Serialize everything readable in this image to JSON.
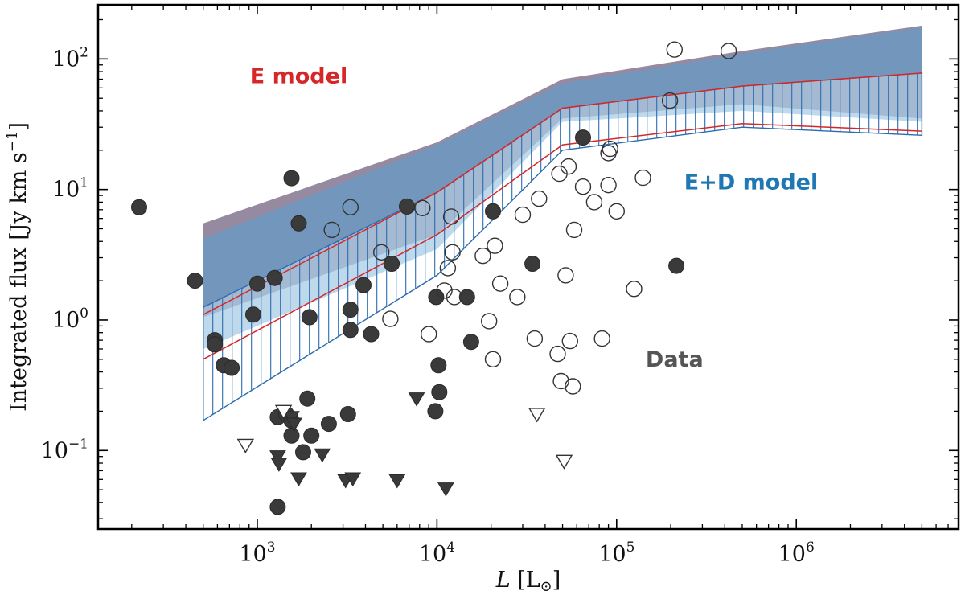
{
  "chart_data": {
    "type": "scatter",
    "xscale": "log",
    "yscale": "log",
    "xlim": [
      130,
      8000000
    ],
    "ylim": [
      0.025,
      260
    ],
    "xlabel": {
      "symbol": "L",
      "unit": " [L",
      "unit_sub": "⊙",
      "unit_close": "]"
    },
    "ylabel": {
      "text": "Integrated flux [Jy km s",
      "sup": "−1",
      "close": "]"
    },
    "x_ticks": [
      {
        "value": 1000,
        "label_base": "10",
        "label_exp": "3"
      },
      {
        "value": 10000,
        "label_base": "10",
        "label_exp": "4"
      },
      {
        "value": 100000,
        "label_base": "10",
        "label_exp": "5"
      },
      {
        "value": 1000000,
        "label_base": "10",
        "label_exp": "6"
      }
    ],
    "y_ticks": [
      {
        "value": 0.1,
        "label_base": "10",
        "label_exp": "−1"
      },
      {
        "value": 1,
        "label_base": "10",
        "label_exp": "0"
      },
      {
        "value": 10,
        "label_base": "10",
        "label_exp": "1"
      },
      {
        "value": 100,
        "label_base": "10",
        "label_exp": "2"
      }
    ],
    "annotations": [
      {
        "text": "E model",
        "x": 1700,
        "y": 65,
        "color": "#d62728"
      },
      {
        "text": "E+D model",
        "x": 560000,
        "y": 10,
        "color": "#1f77b4"
      },
      {
        "text": "Data",
        "x": 210000,
        "y": 0.44,
        "color": "#555555"
      }
    ],
    "series": [
      {
        "name": "E model band",
        "kind": "band",
        "color": "#5e4b6e",
        "opacity": 0.65,
        "x": [
          500,
          10000,
          50000,
          500000,
          5000000
        ],
        "upper": [
          5.5,
          23,
          70,
          115,
          180
        ],
        "lower": [
          1.05,
          4.5,
          35,
          45,
          35
        ]
      },
      {
        "name": "E+D model band",
        "kind": "band",
        "color": "#5b9fcf",
        "opacity": 0.6,
        "x": [
          500,
          10000,
          50000,
          500000,
          5000000
        ],
        "upper": [
          4.2,
          22,
          65,
          110,
          175
        ],
        "lower": [
          0.6,
          3.5,
          33,
          40,
          33
        ]
      },
      {
        "name": "Hatched model region",
        "kind": "hatched",
        "color": "#2b6cb0",
        "x": [
          500,
          10000,
          50000,
          500000,
          5000000
        ],
        "upper": [
          1.25,
          9.5,
          42,
          62,
          78
        ],
        "lower": [
          0.17,
          2.2,
          20,
          30,
          26
        ]
      },
      {
        "name": "Model median",
        "kind": "line",
        "color": "#d62728",
        "x": [
          500,
          10000,
          50000,
          500000,
          5000000
        ],
        "y": [
          0.5,
          4.5,
          22,
          32,
          28
        ]
      },
      {
        "name": "Model upper line",
        "kind": "line",
        "color": "#d62728",
        "x": [
          500,
          10000,
          50000,
          500000,
          5000000
        ],
        "y": [
          1.1,
          9.5,
          42,
          62,
          78
        ]
      },
      {
        "name": "Detections (filled circles)",
        "kind": "marker",
        "shape": "circle",
        "filled": true,
        "color": "#3a3a3a",
        "points": [
          [
            220,
            7.3
          ],
          [
            450,
            2.0
          ],
          [
            580,
            0.7
          ],
          [
            580,
            0.65
          ],
          [
            650,
            0.45
          ],
          [
            720,
            0.43
          ],
          [
            950,
            1.1
          ],
          [
            1000,
            1.9
          ],
          [
            1250,
            2.1
          ],
          [
            1300,
            0.18
          ],
          [
            1300,
            0.037
          ],
          [
            1450,
            0.19
          ],
          [
            1550,
            0.17
          ],
          [
            1550,
            0.13
          ],
          [
            1550,
            12.2
          ],
          [
            1700,
            5.5
          ],
          [
            1800,
            0.097
          ],
          [
            1900,
            0.25
          ],
          [
            1950,
            1.05
          ],
          [
            2000,
            0.13
          ],
          [
            2500,
            0.16
          ],
          [
            3200,
            0.19
          ],
          [
            3300,
            1.2
          ],
          [
            3300,
            0.84
          ],
          [
            3900,
            1.85
          ],
          [
            4300,
            0.78
          ],
          [
            5600,
            2.7
          ],
          [
            6800,
            7.4
          ],
          [
            9800,
            0.2
          ],
          [
            9900,
            1.5
          ],
          [
            10200,
            0.45
          ],
          [
            10300,
            0.28
          ],
          [
            14700,
            1.5
          ],
          [
            15500,
            0.68
          ],
          [
            20500,
            6.8
          ],
          [
            34000,
            2.7
          ],
          [
            65000,
            25
          ],
          [
            215000,
            2.6
          ]
        ]
      },
      {
        "name": "Detections (open circles)",
        "kind": "marker",
        "shape": "circle",
        "filled": false,
        "color": "#333333",
        "points": [
          [
            2600,
            4.9
          ],
          [
            3300,
            7.3
          ],
          [
            4900,
            3.3
          ],
          [
            5500,
            1.02
          ],
          [
            8300,
            7.2
          ],
          [
            9000,
            0.78
          ],
          [
            11000,
            1.68
          ],
          [
            11500,
            2.5
          ],
          [
            12000,
            6.2
          ],
          [
            12200,
            3.3
          ],
          [
            12500,
            1.5
          ],
          [
            18000,
            3.1
          ],
          [
            19500,
            0.98
          ],
          [
            20500,
            0.5
          ],
          [
            21000,
            3.7
          ],
          [
            22500,
            1.9
          ],
          [
            28000,
            1.5
          ],
          [
            30000,
            6.4
          ],
          [
            35000,
            0.72
          ],
          [
            37000,
            8.5
          ],
          [
            47000,
            0.55
          ],
          [
            48000,
            13.2
          ],
          [
            49000,
            0.34
          ],
          [
            52000,
            2.2
          ],
          [
            54000,
            15
          ],
          [
            55000,
            0.69
          ],
          [
            57000,
            0.31
          ],
          [
            58000,
            4.9
          ],
          [
            65000,
            10.5
          ],
          [
            75000,
            8.0
          ],
          [
            83000,
            0.72
          ],
          [
            90000,
            10.8
          ],
          [
            90000,
            19
          ],
          [
            92000,
            20.5
          ],
          [
            100000,
            6.8
          ],
          [
            125000,
            1.73
          ],
          [
            140000,
            12.3
          ],
          [
            198000,
            48
          ],
          [
            210000,
            118
          ],
          [
            420000,
            115
          ]
        ]
      },
      {
        "name": "Upper limits (filled triangles)",
        "kind": "marker",
        "shape": "triangle",
        "filled": true,
        "color": "#3a3a3a",
        "points": [
          [
            1300,
            0.09
          ],
          [
            1320,
            0.079
          ],
          [
            1550,
            0.18
          ],
          [
            1600,
            0.16
          ],
          [
            1700,
            0.061
          ],
          [
            2300,
            0.093
          ],
          [
            3100,
            0.059
          ],
          [
            3400,
            0.061
          ],
          [
            6000,
            0.059
          ],
          [
            7700,
            0.25
          ],
          [
            11200,
            0.051
          ]
        ]
      },
      {
        "name": "Upper limits (open triangles)",
        "kind": "marker",
        "shape": "triangle",
        "filled": false,
        "color": "#333333",
        "points": [
          [
            860,
            0.11
          ],
          [
            1400,
            0.2
          ],
          [
            36000,
            0.19
          ],
          [
            51000,
            0.083
          ]
        ]
      }
    ]
  }
}
